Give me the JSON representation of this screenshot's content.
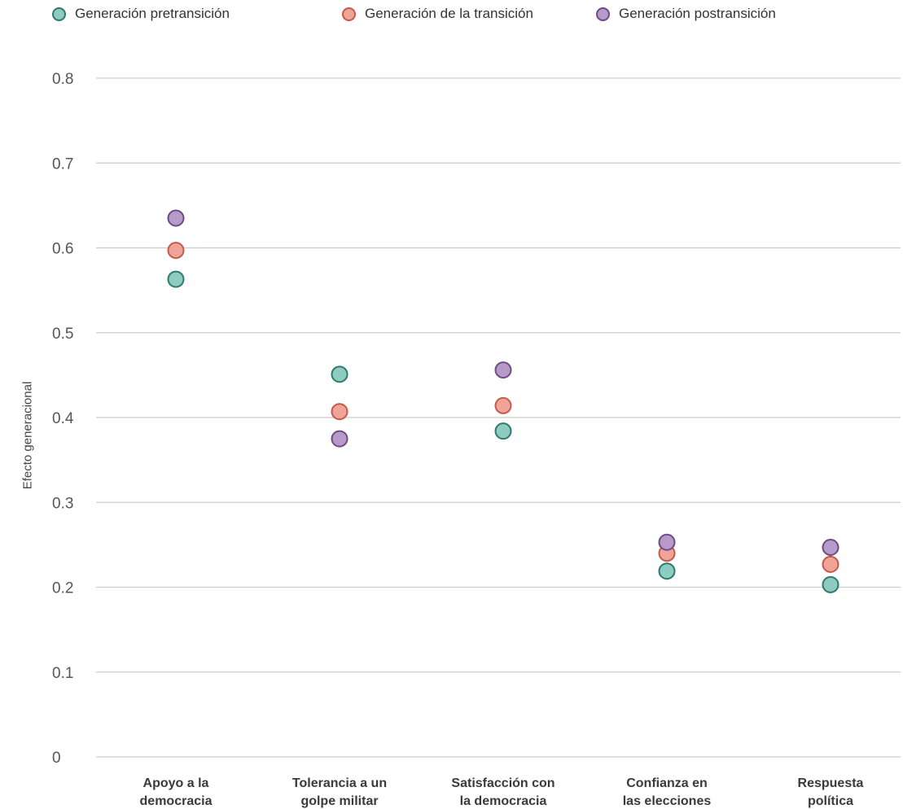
{
  "chart_data": {
    "type": "scatter",
    "categories": [
      [
        "Apoyo a la",
        "democracia"
      ],
      [
        "Tolerancia a un",
        "golpe militar"
      ],
      [
        "Satisfacción con",
        "la democracia"
      ],
      [
        "Confianza en",
        "las elecciones"
      ],
      [
        "Respuesta",
        "política"
      ]
    ],
    "series": [
      {
        "name": "Generación pretransición",
        "color": "#8ecbc0",
        "stroke": "#2c7a6e",
        "values": [
          0.563,
          0.451,
          0.384,
          0.219,
          0.203
        ]
      },
      {
        "name": "Generación de la transición",
        "color": "#f0a497",
        "stroke": "#c45a4c",
        "values": [
          0.597,
          0.407,
          0.414,
          0.24,
          0.227
        ]
      },
      {
        "name": "Generación postransición",
        "color": "#b79ac8",
        "stroke": "#6e4a86",
        "values": [
          0.635,
          0.375,
          0.456,
          0.253,
          0.247
        ]
      }
    ],
    "ylabel": "Efecto generacional",
    "ylim": [
      0,
      0.8
    ],
    "yticks": [
      "0",
      "0.1",
      "0.2",
      "0.3",
      "0.4",
      "0.5",
      "0.6",
      "0.7",
      "0.8"
    ],
    "grid": true,
    "legend_position": "top"
  }
}
